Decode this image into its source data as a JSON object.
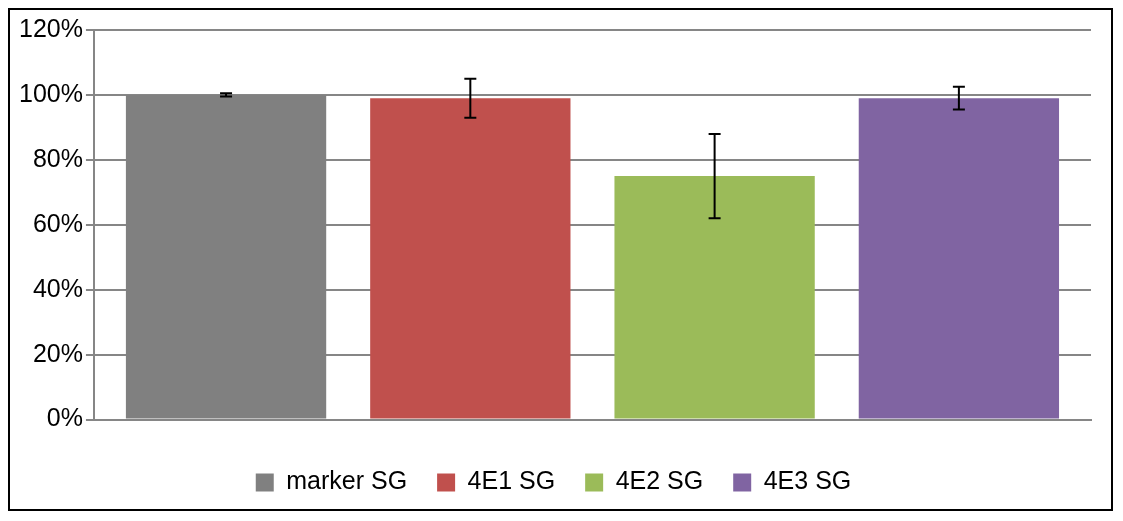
{
  "chart_data": {
    "type": "bar",
    "categories": [
      null
    ],
    "series": [
      {
        "name": "marker SG",
        "color": "#808080",
        "values": [
          100
        ],
        "errors": [
          0.5
        ]
      },
      {
        "name": "4E1 SG",
        "color": "#c0504d",
        "values": [
          99
        ],
        "errors": [
          6
        ]
      },
      {
        "name": "4E2 SG",
        "color": "#9bbb59",
        "values": [
          75
        ],
        "errors": [
          13
        ]
      },
      {
        "name": "4E3 SG",
        "color": "#8064a2",
        "values": [
          99
        ],
        "errors": [
          3.5
        ]
      }
    ],
    "ylim": [
      0,
      120
    ],
    "yticks": [
      {
        "value": 0,
        "label": "0%"
      },
      {
        "value": 20,
        "label": "20%"
      },
      {
        "value": 40,
        "label": "40%"
      },
      {
        "value": 60,
        "label": "60%"
      },
      {
        "value": 80,
        "label": "80%"
      },
      {
        "value": 100,
        "label": "100%"
      },
      {
        "value": 120,
        "label": "120%"
      }
    ],
    "grid": "y",
    "legend": "bottom"
  }
}
